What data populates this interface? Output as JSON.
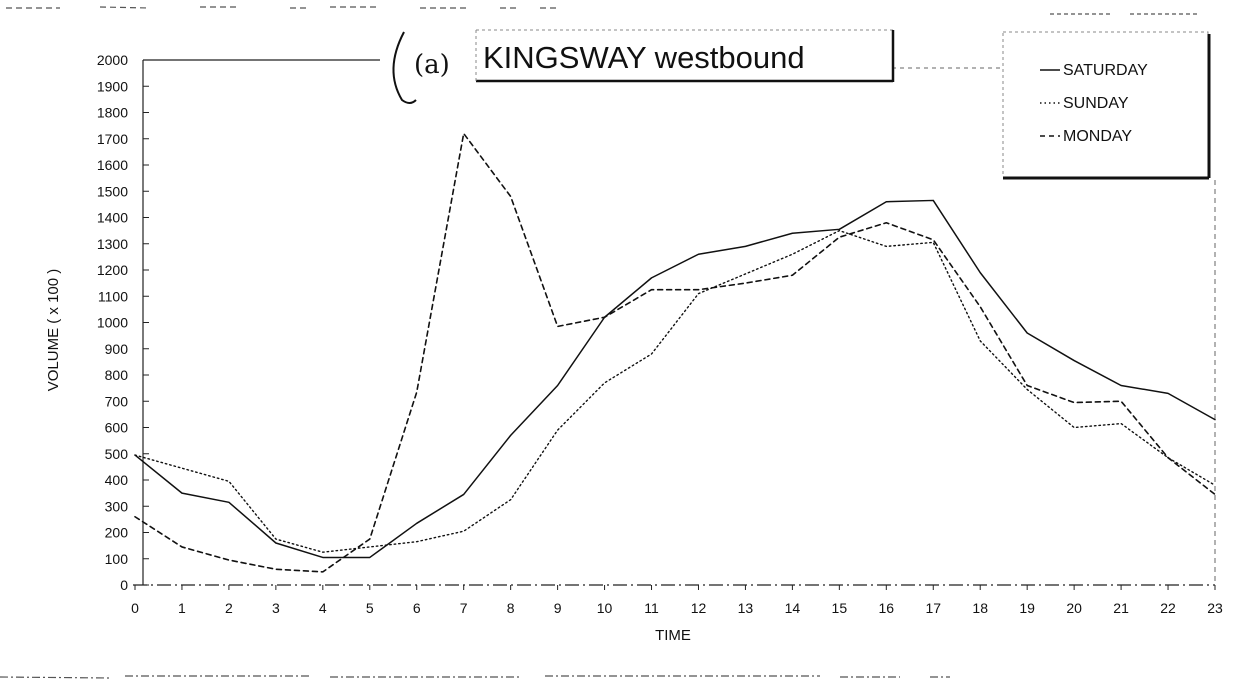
{
  "chart_data": {
    "type": "line",
    "title": "KINGSWAY westbound",
    "title_marker": "(a)",
    "xlabel": "TIME",
    "ylabel": "VOLUME ( x 100 )",
    "x": [
      0,
      1,
      2,
      3,
      4,
      5,
      6,
      7,
      8,
      9,
      10,
      11,
      12,
      13,
      14,
      15,
      16,
      17,
      18,
      19,
      20,
      21,
      22,
      23
    ],
    "x_tick_labels": [
      "0",
      "1",
      "2",
      "3",
      "4",
      "5",
      "6",
      "7",
      "8",
      "9",
      "10",
      "11",
      "12",
      "13",
      "14",
      "15",
      "16",
      "17",
      "18",
      "19",
      "20",
      "21",
      "22",
      "23"
    ],
    "xlim": [
      0,
      23
    ],
    "ylim": [
      0,
      2000
    ],
    "y_ticks": [
      0,
      100,
      200,
      300,
      400,
      500,
      600,
      700,
      800,
      900,
      1000,
      1100,
      1200,
      1300,
      1400,
      1500,
      1600,
      1700,
      1800,
      1900,
      2000
    ],
    "y_tick_labels": [
      "0",
      "100",
      "200",
      "300",
      "400",
      "500",
      "600",
      "700",
      "800",
      "900",
      "1000",
      "1100",
      "1200",
      "1300",
      "1400",
      "1500",
      "1600",
      "1700",
      "1800",
      "1900",
      "2000"
    ],
    "grid": false,
    "legend_position": "top-right",
    "series": [
      {
        "name": "SATURDAY",
        "style": "solid",
        "color": "#111111",
        "values": [
          495,
          350,
          315,
          160,
          105,
          105,
          235,
          345,
          570,
          760,
          1020,
          1170,
          1260,
          1290,
          1340,
          1355,
          1460,
          1465,
          1190,
          960,
          855,
          760,
          730,
          630
        ]
      },
      {
        "name": "SUNDAY",
        "style": "dotted",
        "color": "#111111",
        "values": [
          495,
          445,
          395,
          175,
          125,
          145,
          165,
          205,
          325,
          590,
          770,
          880,
          1110,
          1185,
          1260,
          1350,
          1290,
          1305,
          930,
          745,
          600,
          615,
          485,
          380
        ]
      },
      {
        "name": "MONDAY",
        "style": "dashed",
        "color": "#111111",
        "values": [
          260,
          145,
          95,
          60,
          50,
          175,
          735,
          1720,
          1480,
          985,
          1020,
          1125,
          1125,
          1150,
          1180,
          1325,
          1380,
          1315,
          1060,
          760,
          695,
          700,
          485,
          345
        ]
      }
    ]
  }
}
